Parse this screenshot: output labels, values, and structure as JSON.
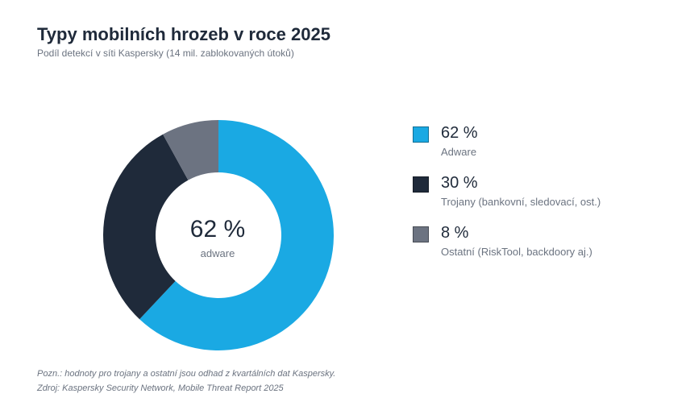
{
  "title": "Typy mobilních hrozeb v roce 2025",
  "subtitle": "Podíl detekcí v síti Kaspersky (14 mil. zablokovaných útoků)",
  "center": {
    "value": "62 %",
    "label": "adware"
  },
  "legend": [
    {
      "value": "62 %",
      "label": "Adware",
      "color": "#1aa9e3"
    },
    {
      "value": "30 %",
      "label": "Trojany (bankovní, sledovací, ost.)",
      "color": "#1f2a3a"
    },
    {
      "value": "8 %",
      "label": "Ostatní (RiskTool, backdoory aj.)",
      "color": "#6c7381"
    }
  ],
  "footnote": "Pozn.: hodnoty pro trojany a ostatní jsou odhad z kvartálních dat Kaspersky.",
  "source": "Zdroj: Kaspersky Security Network, Mobile Threat Report 2025",
  "chart_data": {
    "type": "pie",
    "categories": [
      "Adware",
      "Trojany (bankovní, sledovací, ost.)",
      "Ostatní (RiskTool, backdoory aj.)"
    ],
    "values": [
      62,
      30,
      8
    ],
    "colors": [
      "#1aa9e3",
      "#1f2a3a",
      "#6c7381"
    ],
    "donut": true,
    "title": "Typy mobilních hrozeb v roce 2025",
    "subtitle": "Podíl detekcí v síti Kaspersky (14 mil. zablokovaných útoků)",
    "legend_position": "right"
  }
}
